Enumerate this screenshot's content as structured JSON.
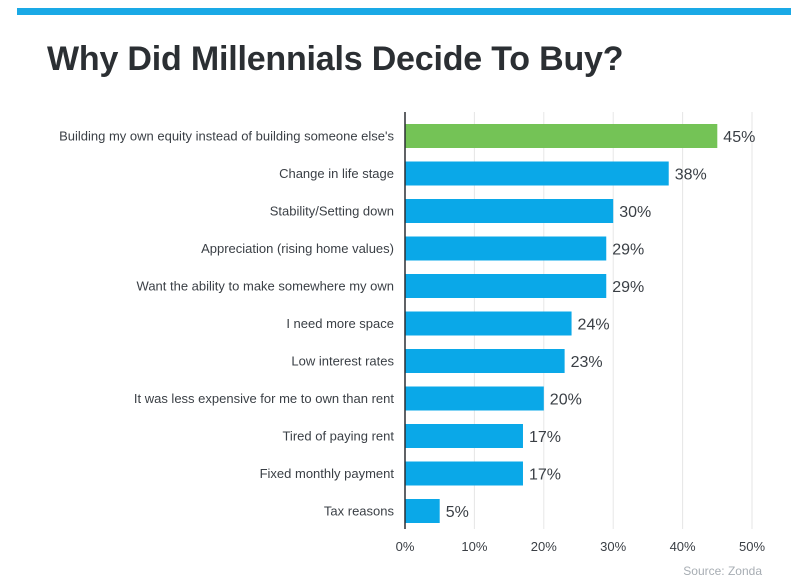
{
  "colors": {
    "accent_bar": "#74c356",
    "bar": "#0aa8e8",
    "top_rule": "#1aa9e6",
    "axis": "#2b2f33",
    "grid": "#e6e6e6"
  },
  "title": "Why Did Millennials Decide To Buy?",
  "source": "Source: Zonda",
  "chart_data": {
    "type": "bar",
    "orientation": "horizontal",
    "title": "Why Did Millennials Decide To Buy?",
    "categories": [
      "Building my own equity instead of building someone else's",
      "Change in life stage",
      "Stability/Setting down",
      "Appreciation (rising home values)",
      "Want the ability to make somewhere my own",
      "I need more space",
      "Low interest rates",
      "It was less expensive for me to own than rent",
      "Tired of paying rent",
      "Fixed monthly payment",
      "Tax reasons"
    ],
    "values": [
      45,
      38,
      30,
      29,
      29,
      24,
      23,
      20,
      17,
      17,
      5
    ],
    "value_labels": [
      "45%",
      "38%",
      "30%",
      "29%",
      "29%",
      "24%",
      "23%",
      "20%",
      "17%",
      "17%",
      "5%"
    ],
    "highlight_index": 0,
    "xlim": [
      0,
      50
    ],
    "x_ticks": [
      0,
      10,
      20,
      30,
      40,
      50
    ],
    "x_tick_labels": [
      "0%",
      "10%",
      "20%",
      "30%",
      "40%",
      "50%"
    ],
    "grid": "vertical",
    "xlabel": "",
    "ylabel": ""
  }
}
